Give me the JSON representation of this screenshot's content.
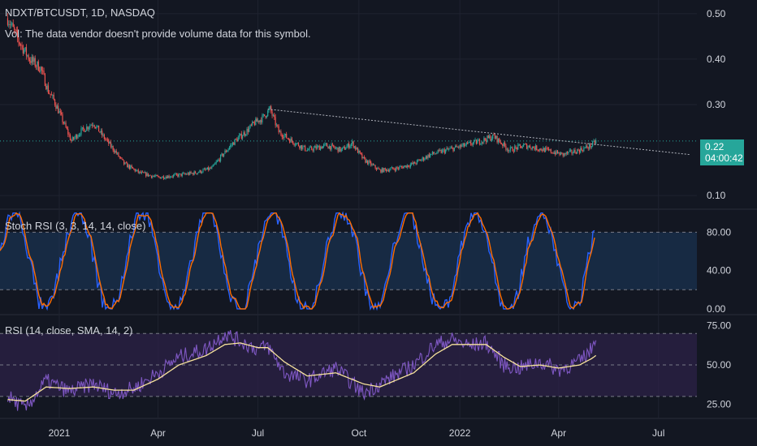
{
  "legend": {
    "symbol": "NDXT/BTCUSDT, 1D, NASDAQ",
    "volume_note": "Vol: The data vendor doesn't provide volume data for this symbol.",
    "stoch_title": "Stoch RSI (3, 3, 14, 14, close)",
    "rsi_title": "RSI (14, close, SMA, 14, 2)"
  },
  "price_tag": {
    "value": "0.22",
    "countdown": "04:00:42"
  },
  "colors": {
    "background": "#131722",
    "grid": "#1f2330",
    "text": "#d1d4dc",
    "up": "#26a69a",
    "down": "#ef5350",
    "stoch_k": "#2962ff",
    "stoch_d": "#ff6d00",
    "rsi": "#7e57c2",
    "rsi_ma": "#f7e39c",
    "stoch_band": "#1c3a5e",
    "rsi_band": "#2a2145"
  },
  "chart_data": [
    {
      "type": "candlestick",
      "name": "NDXT/BTCUSDT",
      "ylim": [
        0.07,
        0.53
      ],
      "yticks": [
        "0.50",
        "0.40",
        "0.30",
        "0.10"
      ],
      "last_value": 0.22,
      "trendline": [
        {
          "x": "2021-07-10",
          "y": 0.29
        },
        {
          "x": "2022-07-30",
          "y": 0.19
        }
      ],
      "close_series": [
        {
          "x": "2020-11-15",
          "y": 0.49
        },
        {
          "x": "2020-11-25",
          "y": 0.44
        },
        {
          "x": "2020-12-05",
          "y": 0.4
        },
        {
          "x": "2020-12-15",
          "y": 0.38
        },
        {
          "x": "2020-12-22",
          "y": 0.33
        },
        {
          "x": "2020-12-27",
          "y": 0.31
        },
        {
          "x": "2021-01-05",
          "y": 0.26
        },
        {
          "x": "2021-01-12",
          "y": 0.22
        },
        {
          "x": "2021-01-20",
          "y": 0.24
        },
        {
          "x": "2021-02-01",
          "y": 0.26
        },
        {
          "x": "2021-02-10",
          "y": 0.23
        },
        {
          "x": "2021-02-20",
          "y": 0.2
        },
        {
          "x": "2021-03-01",
          "y": 0.17
        },
        {
          "x": "2021-03-15",
          "y": 0.15
        },
        {
          "x": "2021-04-01",
          "y": 0.14
        },
        {
          "x": "2021-04-20",
          "y": 0.145
        },
        {
          "x": "2021-05-05",
          "y": 0.15
        },
        {
          "x": "2021-05-20",
          "y": 0.16
        },
        {
          "x": "2021-05-30",
          "y": 0.19
        },
        {
          "x": "2021-06-10",
          "y": 0.22
        },
        {
          "x": "2021-06-20",
          "y": 0.24
        },
        {
          "x": "2021-06-28",
          "y": 0.26
        },
        {
          "x": "2021-07-05",
          "y": 0.27
        },
        {
          "x": "2021-07-12",
          "y": 0.29
        },
        {
          "x": "2021-07-20",
          "y": 0.24
        },
        {
          "x": "2021-08-01",
          "y": 0.22
        },
        {
          "x": "2021-08-15",
          "y": 0.2
        },
        {
          "x": "2021-09-01",
          "y": 0.21
        },
        {
          "x": "2021-09-15",
          "y": 0.2
        },
        {
          "x": "2021-09-25",
          "y": 0.215
        },
        {
          "x": "2021-10-05",
          "y": 0.18
        },
        {
          "x": "2021-10-20",
          "y": 0.155
        },
        {
          "x": "2021-11-05",
          "y": 0.16
        },
        {
          "x": "2021-11-20",
          "y": 0.17
        },
        {
          "x": "2021-12-05",
          "y": 0.19
        },
        {
          "x": "2021-12-20",
          "y": 0.2
        },
        {
          "x": "2022-01-05",
          "y": 0.21
        },
        {
          "x": "2022-01-20",
          "y": 0.22
        },
        {
          "x": "2022-02-01",
          "y": 0.23
        },
        {
          "x": "2022-02-15",
          "y": 0.2
        },
        {
          "x": "2022-03-01",
          "y": 0.21
        },
        {
          "x": "2022-03-20",
          "y": 0.2
        },
        {
          "x": "2022-04-05",
          "y": 0.19
        },
        {
          "x": "2022-04-20",
          "y": 0.2
        },
        {
          "x": "2022-05-01",
          "y": 0.21
        },
        {
          "x": "2022-05-05",
          "y": 0.22
        }
      ]
    },
    {
      "type": "line",
      "name": "Stoch RSI",
      "ylim": [
        -6,
        104
      ],
      "yticks": [
        "80.00",
        "40.00",
        "0.00"
      ],
      "band": [
        20,
        80
      ]
    },
    {
      "type": "line",
      "name": "RSI",
      "ylim": [
        16,
        82
      ],
      "yticks": [
        "75.00",
        "50.00",
        "25.00"
      ],
      "band": [
        30,
        70
      ],
      "midline": 50,
      "rsi_series": [
        {
          "x": "2020-11-15",
          "y": 30
        },
        {
          "x": "2020-12-01",
          "y": 22
        },
        {
          "x": "2020-12-20",
          "y": 40
        },
        {
          "x": "2021-01-10",
          "y": 33
        },
        {
          "x": "2021-02-01",
          "y": 38
        },
        {
          "x": "2021-02-20",
          "y": 32
        },
        {
          "x": "2021-03-10",
          "y": 35
        },
        {
          "x": "2021-04-01",
          "y": 45
        },
        {
          "x": "2021-04-20",
          "y": 55
        },
        {
          "x": "2021-05-15",
          "y": 60
        },
        {
          "x": "2021-06-01",
          "y": 70
        },
        {
          "x": "2021-06-15",
          "y": 65
        },
        {
          "x": "2021-07-01",
          "y": 60
        },
        {
          "x": "2021-07-10",
          "y": 62
        },
        {
          "x": "2021-07-25",
          "y": 45
        },
        {
          "x": "2021-08-15",
          "y": 40
        },
        {
          "x": "2021-09-10",
          "y": 48
        },
        {
          "x": "2021-10-05",
          "y": 32
        },
        {
          "x": "2021-10-20",
          "y": 38
        },
        {
          "x": "2021-11-20",
          "y": 50
        },
        {
          "x": "2021-12-10",
          "y": 63
        },
        {
          "x": "2021-12-25",
          "y": 66
        },
        {
          "x": "2022-01-10",
          "y": 62
        },
        {
          "x": "2022-01-25",
          "y": 64
        },
        {
          "x": "2022-02-10",
          "y": 50
        },
        {
          "x": "2022-02-25",
          "y": 48
        },
        {
          "x": "2022-03-15",
          "y": 52
        },
        {
          "x": "2022-04-01",
          "y": 47
        },
        {
          "x": "2022-04-20",
          "y": 52
        },
        {
          "x": "2022-05-01",
          "y": 60
        },
        {
          "x": "2022-05-05",
          "y": 70
        }
      ],
      "rsi_ma_series": [
        {
          "x": "2020-11-15",
          "y": 28
        },
        {
          "x": "2020-12-01",
          "y": 27
        },
        {
          "x": "2020-12-20",
          "y": 36
        },
        {
          "x": "2021-01-10",
          "y": 35
        },
        {
          "x": "2021-02-01",
          "y": 36
        },
        {
          "x": "2021-02-20",
          "y": 34
        },
        {
          "x": "2021-03-10",
          "y": 34
        },
        {
          "x": "2021-04-01",
          "y": 41
        },
        {
          "x": "2021-04-20",
          "y": 50
        },
        {
          "x": "2021-05-15",
          "y": 56
        },
        {
          "x": "2021-06-01",
          "y": 63
        },
        {
          "x": "2021-06-15",
          "y": 64
        },
        {
          "x": "2021-07-01",
          "y": 61
        },
        {
          "x": "2021-07-10",
          "y": 61
        },
        {
          "x": "2021-07-25",
          "y": 52
        },
        {
          "x": "2021-08-15",
          "y": 43
        },
        {
          "x": "2021-09-10",
          "y": 45
        },
        {
          "x": "2021-10-05",
          "y": 38
        },
        {
          "x": "2021-10-20",
          "y": 36
        },
        {
          "x": "2021-11-20",
          "y": 45
        },
        {
          "x": "2021-12-10",
          "y": 57
        },
        {
          "x": "2021-12-25",
          "y": 63
        },
        {
          "x": "2022-01-10",
          "y": 63
        },
        {
          "x": "2022-01-25",
          "y": 63
        },
        {
          "x": "2022-02-10",
          "y": 55
        },
        {
          "x": "2022-02-25",
          "y": 49
        },
        {
          "x": "2022-03-15",
          "y": 50
        },
        {
          "x": "2022-04-01",
          "y": 48
        },
        {
          "x": "2022-04-20",
          "y": 50
        },
        {
          "x": "2022-05-01",
          "y": 54
        },
        {
          "x": "2022-05-05",
          "y": 56
        }
      ]
    }
  ],
  "xaxis": {
    "start": "2020-11-08",
    "end": "2022-08-05",
    "ticks": [
      {
        "label": "2021",
        "date": "2021-01-01"
      },
      {
        "label": "Apr",
        "date": "2021-04-01"
      },
      {
        "label": "Jul",
        "date": "2021-07-01"
      },
      {
        "label": "Oct",
        "date": "2021-10-01"
      },
      {
        "label": "2022",
        "date": "2022-01-01"
      },
      {
        "label": "Apr",
        "date": "2022-04-01"
      },
      {
        "label": "Jul",
        "date": "2022-07-01"
      }
    ]
  }
}
